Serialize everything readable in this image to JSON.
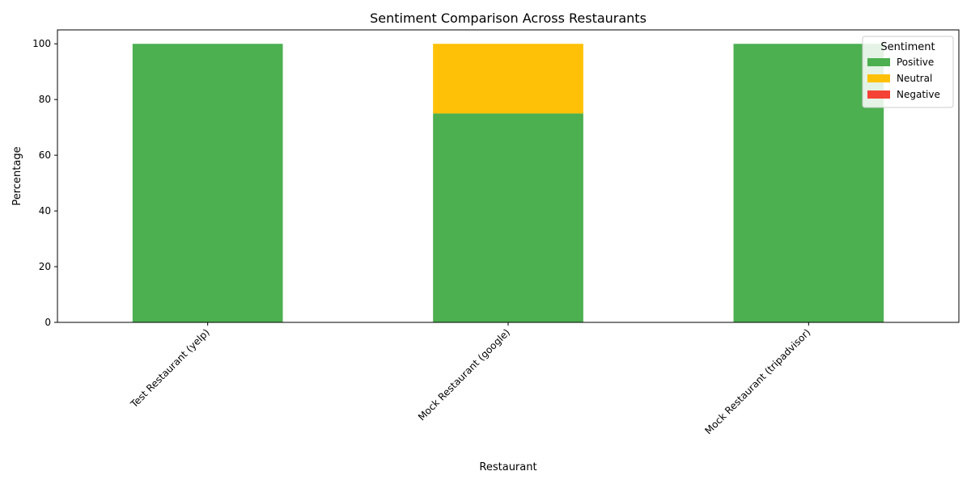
{
  "chart_data": {
    "type": "bar",
    "stacked": true,
    "title": "Sentiment Comparison Across Restaurants",
    "xlabel": "Restaurant",
    "ylabel": "Percentage",
    "ylim": [
      0,
      105
    ],
    "yticks": [
      0,
      20,
      40,
      60,
      80,
      100
    ],
    "categories": [
      "Test Restaurant (yelp)",
      "Mock Restaurant (google)",
      "Mock Restaurant (tripadvisor)"
    ],
    "series": [
      {
        "name": "Positive",
        "color": "#4caf50",
        "values": [
          100,
          75,
          100
        ]
      },
      {
        "name": "Neutral",
        "color": "#ffc107",
        "values": [
          0,
          25,
          0
        ]
      },
      {
        "name": "Negative",
        "color": "#f44336",
        "values": [
          0,
          0,
          0
        ]
      }
    ],
    "legend": {
      "title": "Sentiment",
      "position": "top-right"
    },
    "grid": false
  }
}
